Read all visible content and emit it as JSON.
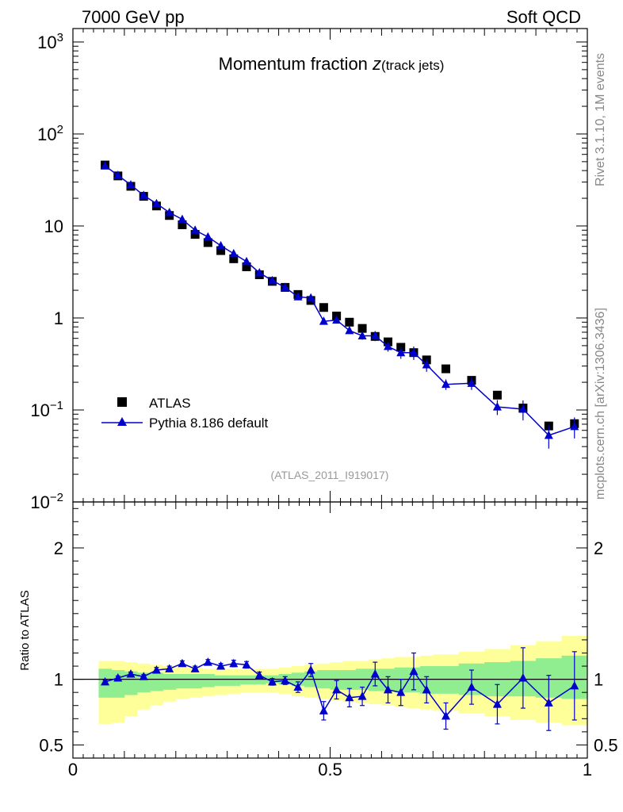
{
  "header": {
    "left": "7000 GeV pp",
    "right": "Soft QCD"
  },
  "side_labels": {
    "rivet": "Rivet 3.1.10,  1M events",
    "source": "mcplots.cern.ch [arXiv:1306.3436]"
  },
  "chart_data": [
    {
      "type": "scatter",
      "title": "Momentum fraction ",
      "title_var": "z",
      "title_sub": "(track jets)",
      "yscale": "log",
      "ylim": [
        0.01,
        1400
      ],
      "xlim": [
        0,
        1
      ],
      "y_ticks": [
        {
          "value": 1000,
          "mant": "10",
          "exp": "3"
        },
        {
          "value": 100,
          "mant": "10",
          "exp": "2"
        },
        {
          "value": 10,
          "mant": "10",
          "exp": ""
        },
        {
          "value": 1,
          "mant": "1",
          "exp": ""
        },
        {
          "value": 0.1,
          "mant": "10",
          "exp": "−1"
        },
        {
          "value": 0.01,
          "mant": "10",
          "exp": "−2"
        }
      ],
      "legend_position": "bottom-left",
      "reference_label": "(ATLAS_2011_I919017)",
      "x": [
        0.0625,
        0.0875,
        0.1125,
        0.1375,
        0.1625,
        0.1875,
        0.2125,
        0.2375,
        0.2625,
        0.2875,
        0.3125,
        0.3375,
        0.3625,
        0.3875,
        0.4125,
        0.4375,
        0.4625,
        0.4875,
        0.5125,
        0.5375,
        0.5625,
        0.5875,
        0.6125,
        0.6375,
        0.6625,
        0.6875,
        0.725,
        0.775,
        0.825,
        0.875,
        0.925,
        0.975
      ],
      "series": [
        {
          "name": "ATLAS",
          "color": "#000000",
          "marker": "square",
          "values": [
            46,
            35,
            27,
            21,
            16.5,
            13,
            10.3,
            8.1,
            6.6,
            5.4,
            4.4,
            3.6,
            2.95,
            2.5,
            2.15,
            1.8,
            1.55,
            1.3,
            1.05,
            0.9,
            0.77,
            0.63,
            0.55,
            0.48,
            0.42,
            0.35,
            0.28,
            0.21,
            0.145,
            0.105,
            0.067,
            0.071
          ]
        },
        {
          "name": "Pythia 8.186 default",
          "color": "#0000cc",
          "marker": "triangle",
          "values": [
            45,
            35.5,
            28,
            21.5,
            17.5,
            14,
            11.8,
            9,
            7.6,
            6.1,
            5,
            4.1,
            3.1,
            2.55,
            2.15,
            1.7,
            1.65,
            0.92,
            0.95,
            0.73,
            0.64,
            0.64,
            0.49,
            0.42,
            0.42,
            0.31,
            0.19,
            0.195,
            0.108,
            0.102,
            0.053,
            0.066
          ],
          "err": [
            0.6,
            0.5,
            0.4,
            0.3,
            0.25,
            0.2,
            0.2,
            0.15,
            0.12,
            0.1,
            0.08,
            0.07,
            0.06,
            0.05,
            0.05,
            0.05,
            0.05,
            0.07,
            0.07,
            0.06,
            0.06,
            0.08,
            0.06,
            0.06,
            0.07,
            0.05,
            0.025,
            0.03,
            0.02,
            0.025,
            0.015,
            0.017
          ]
        }
      ]
    },
    {
      "type": "scatter",
      "ylabel": "Ratio to ATLAS",
      "ylim": [
        0.4,
        2.35
      ],
      "xlim": [
        0,
        1
      ],
      "y_ticks": [
        0.5,
        1,
        2
      ],
      "x_ticks": [
        0,
        0.5,
        1
      ],
      "x_tick_labels": [
        "0",
        "0.5",
        "1"
      ],
      "reference_line": 1,
      "bands": {
        "edges": [
          0.05,
          0.075,
          0.1,
          0.125,
          0.15,
          0.175,
          0.2,
          0.225,
          0.25,
          0.275,
          0.3,
          0.325,
          0.35,
          0.375,
          0.4,
          0.425,
          0.45,
          0.475,
          0.5,
          0.525,
          0.55,
          0.575,
          0.6,
          0.625,
          0.65,
          0.675,
          0.7,
          0.75,
          0.8,
          0.85,
          0.9,
          0.95,
          1.0
        ],
        "green_color": "#90ee90",
        "yellow_color": "#ffff99",
        "green": [
          [
            0.86,
            1.08
          ],
          [
            0.86,
            1.07
          ],
          [
            0.88,
            1.06
          ],
          [
            0.9,
            1.05
          ],
          [
            0.91,
            1.05
          ],
          [
            0.92,
            1.04
          ],
          [
            0.93,
            1.04
          ],
          [
            0.93,
            1.04
          ],
          [
            0.94,
            1.04
          ],
          [
            0.95,
            1.03
          ],
          [
            0.95,
            1.03
          ],
          [
            0.96,
            1.03
          ],
          [
            0.96,
            1.03
          ],
          [
            0.97,
            1.03
          ],
          [
            0.96,
            1.04
          ],
          [
            0.95,
            1.05
          ],
          [
            0.94,
            1.06
          ],
          [
            0.93,
            1.07
          ],
          [
            0.92,
            1.07
          ],
          [
            0.92,
            1.07
          ],
          [
            0.92,
            1.08
          ],
          [
            0.91,
            1.08
          ],
          [
            0.91,
            1.08
          ],
          [
            0.9,
            1.09
          ],
          [
            0.9,
            1.09
          ],
          [
            0.89,
            1.1
          ],
          [
            0.89,
            1.1
          ],
          [
            0.88,
            1.12
          ],
          [
            0.87,
            1.13
          ],
          [
            0.87,
            1.14
          ],
          [
            0.86,
            1.16
          ],
          [
            0.85,
            1.18
          ]
        ],
        "yellow": [
          [
            0.66,
            1.14
          ],
          [
            0.67,
            1.14
          ],
          [
            0.72,
            1.13
          ],
          [
            0.77,
            1.12
          ],
          [
            0.8,
            1.11
          ],
          [
            0.83,
            1.1
          ],
          [
            0.85,
            1.09
          ],
          [
            0.86,
            1.09
          ],
          [
            0.87,
            1.08
          ],
          [
            0.88,
            1.08
          ],
          [
            0.89,
            1.08
          ],
          [
            0.9,
            1.08
          ],
          [
            0.9,
            1.08
          ],
          [
            0.9,
            1.08
          ],
          [
            0.89,
            1.09
          ],
          [
            0.87,
            1.1
          ],
          [
            0.86,
            1.11
          ],
          [
            0.85,
            1.12
          ],
          [
            0.84,
            1.13
          ],
          [
            0.83,
            1.14
          ],
          [
            0.82,
            1.14
          ],
          [
            0.81,
            1.15
          ],
          [
            0.8,
            1.16
          ],
          [
            0.79,
            1.17
          ],
          [
            0.78,
            1.17
          ],
          [
            0.77,
            1.18
          ],
          [
            0.76,
            1.19
          ],
          [
            0.74,
            1.21
          ],
          [
            0.72,
            1.23
          ],
          [
            0.69,
            1.26
          ],
          [
            0.67,
            1.29
          ],
          [
            0.65,
            1.33
          ]
        ]
      },
      "series": [
        {
          "name": "Pythia 8.186 default",
          "values": [
            0.98,
            1.01,
            1.04,
            1.02,
            1.07,
            1.08,
            1.12,
            1.08,
            1.13,
            1.1,
            1.12,
            1.11,
            1.03,
            0.98,
            0.99,
            0.94,
            1.07,
            0.76,
            0.92,
            0.86,
            0.87,
            1.04,
            0.92,
            0.9,
            1.06,
            0.92,
            0.72,
            0.94,
            0.81,
            1.01,
            0.82,
            0.95
          ],
          "err": [
            0.015,
            0.015,
            0.015,
            0.015,
            0.02,
            0.02,
            0.02,
            0.02,
            0.02,
            0.02,
            0.025,
            0.025,
            0.025,
            0.025,
            0.03,
            0.04,
            0.05,
            0.07,
            0.07,
            0.07,
            0.07,
            0.09,
            0.1,
            0.1,
            0.14,
            0.1,
            0.1,
            0.13,
            0.15,
            0.23,
            0.21,
            0.26
          ]
        }
      ]
    }
  ]
}
